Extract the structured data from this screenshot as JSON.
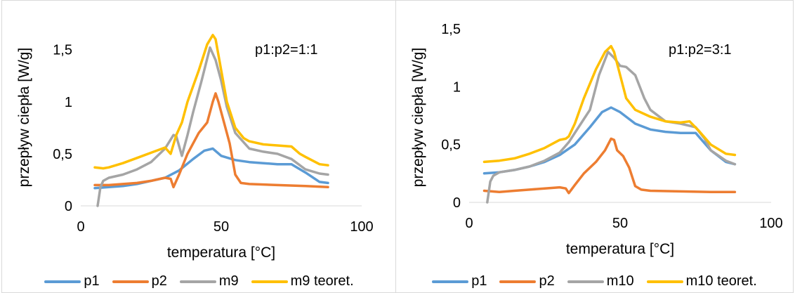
{
  "colors": {
    "p1": "#5b9bd5",
    "p2": "#ed7d31",
    "m": "#a5a5a5",
    "teoret": "#ffc000"
  },
  "chart_data": [
    {
      "type": "line",
      "annotation": "p1:p2=1:1",
      "xlabel": "temperatura [°C]",
      "ylabel": "przepływ ciepła [W/g]",
      "xlim": [
        0,
        100
      ],
      "ylim": [
        0,
        1.7
      ],
      "xticks": [
        0,
        50,
        100
      ],
      "xtick_labels": [
        "0",
        "50",
        "100"
      ],
      "yticks": [
        0,
        0.5,
        1,
        1.5
      ],
      "ytick_labels": [
        "0",
        "0,5",
        "1",
        "1,5"
      ],
      "grid": false,
      "legend": "bottom",
      "series": [
        {
          "name": "p1",
          "color": "#5b9bd5",
          "x": [
            5,
            10,
            15,
            20,
            25,
            30,
            35,
            40,
            44,
            47,
            50,
            55,
            60,
            65,
            70,
            75,
            80,
            85,
            88
          ],
          "y": [
            0.17,
            0.18,
            0.19,
            0.21,
            0.24,
            0.27,
            0.34,
            0.45,
            0.53,
            0.55,
            0.48,
            0.44,
            0.42,
            0.41,
            0.4,
            0.4,
            0.32,
            0.23,
            0.22
          ]
        },
        {
          "name": "p2",
          "color": "#ed7d31",
          "x": [
            5,
            10,
            15,
            20,
            25,
            30,
            32,
            33,
            35,
            38,
            42,
            45,
            47,
            48,
            49,
            51,
            53,
            55,
            57,
            60,
            70,
            80,
            88
          ],
          "y": [
            0.2,
            0.2,
            0.21,
            0.22,
            0.24,
            0.27,
            0.26,
            0.18,
            0.3,
            0.5,
            0.7,
            0.8,
            1.0,
            1.08,
            1.0,
            0.8,
            0.6,
            0.3,
            0.22,
            0.21,
            0.2,
            0.19,
            0.18
          ]
        },
        {
          "name": "m9",
          "color": "#a5a5a5",
          "x": [
            6,
            7,
            8,
            10,
            15,
            20,
            25,
            30,
            33,
            34,
            36,
            38,
            40,
            43,
            46,
            48,
            50,
            52,
            55,
            60,
            65,
            70,
            75,
            80,
            85,
            88
          ],
          "y": [
            0,
            0.18,
            0.24,
            0.27,
            0.3,
            0.35,
            0.42,
            0.55,
            0.68,
            0.67,
            0.48,
            0.68,
            0.9,
            1.2,
            1.52,
            1.4,
            1.2,
            0.95,
            0.7,
            0.55,
            0.52,
            0.5,
            0.45,
            0.35,
            0.31,
            0.3
          ]
        },
        {
          "name": "m9 teoret.",
          "color": "#ffc000",
          "x": [
            5,
            8,
            10,
            15,
            20,
            25,
            30,
            32,
            34,
            36,
            38,
            42,
            45,
            47,
            48,
            50,
            52,
            55,
            58,
            60,
            65,
            70,
            75,
            78,
            80,
            85,
            88
          ],
          "y": [
            0.37,
            0.36,
            0.37,
            0.41,
            0.46,
            0.51,
            0.56,
            0.5,
            0.68,
            0.8,
            1.0,
            1.3,
            1.55,
            1.64,
            1.6,
            1.3,
            1.0,
            0.75,
            0.65,
            0.62,
            0.59,
            0.58,
            0.57,
            0.5,
            0.47,
            0.4,
            0.39
          ]
        }
      ]
    },
    {
      "type": "line",
      "annotation": "p1:p2=3:1",
      "xlabel": "temperatura [°C]",
      "ylabel": "przepływ ciepła [W/g]",
      "xlim": [
        0,
        100
      ],
      "ylim": [
        0,
        1.5
      ],
      "xticks": [
        0,
        50,
        100
      ],
      "xtick_labels": [
        "0",
        "50",
        "100"
      ],
      "yticks": [
        0,
        0.5,
        1,
        1.5
      ],
      "ytick_labels": [
        "0",
        "0,5",
        "1",
        "1,5"
      ],
      "grid": false,
      "legend": "bottom",
      "series": [
        {
          "name": "p1",
          "color": "#5b9bd5",
          "x": [
            5,
            10,
            15,
            20,
            25,
            30,
            35,
            40,
            44,
            47,
            50,
            55,
            60,
            65,
            70,
            75,
            80,
            85,
            88
          ],
          "y": [
            0.25,
            0.26,
            0.28,
            0.31,
            0.35,
            0.41,
            0.5,
            0.65,
            0.78,
            0.82,
            0.78,
            0.68,
            0.63,
            0.61,
            0.6,
            0.6,
            0.45,
            0.35,
            0.33
          ]
        },
        {
          "name": "p2",
          "color": "#ed7d31",
          "x": [
            5,
            10,
            15,
            20,
            25,
            30,
            32,
            33,
            35,
            38,
            42,
            45,
            47,
            48,
            49,
            51,
            53,
            55,
            57,
            60,
            70,
            80,
            88
          ],
          "y": [
            0.1,
            0.09,
            0.1,
            0.11,
            0.12,
            0.13,
            0.12,
            0.08,
            0.15,
            0.25,
            0.35,
            0.45,
            0.55,
            0.54,
            0.45,
            0.4,
            0.3,
            0.14,
            0.11,
            0.1,
            0.095,
            0.09,
            0.09
          ]
        },
        {
          "name": "m10",
          "color": "#a5a5a5",
          "x": [
            6,
            7,
            8,
            10,
            15,
            20,
            25,
            30,
            33,
            35,
            37,
            40,
            43,
            46,
            48,
            50,
            52,
            55,
            58,
            60,
            65,
            70,
            75,
            78,
            80,
            85,
            88
          ],
          "y": [
            0,
            0.18,
            0.23,
            0.26,
            0.28,
            0.31,
            0.36,
            0.43,
            0.52,
            0.6,
            0.68,
            0.8,
            1.1,
            1.3,
            1.25,
            1.18,
            1.17,
            1.1,
            0.9,
            0.8,
            0.7,
            0.68,
            0.65,
            0.55,
            0.45,
            0.36,
            0.33
          ]
        },
        {
          "name": "m10 teoret.",
          "color": "#ffc000",
          "x": [
            5,
            10,
            15,
            20,
            25,
            30,
            32,
            33,
            35,
            38,
            42,
            45,
            47,
            48,
            50,
            52,
            55,
            60,
            65,
            70,
            73,
            76,
            80,
            85,
            88
          ],
          "y": [
            0.35,
            0.36,
            0.38,
            0.42,
            0.47,
            0.54,
            0.55,
            0.57,
            0.68,
            0.9,
            1.15,
            1.3,
            1.35,
            1.3,
            1.1,
            0.9,
            0.8,
            0.74,
            0.7,
            0.69,
            0.7,
            0.62,
            0.5,
            0.42,
            0.41
          ]
        }
      ]
    }
  ]
}
